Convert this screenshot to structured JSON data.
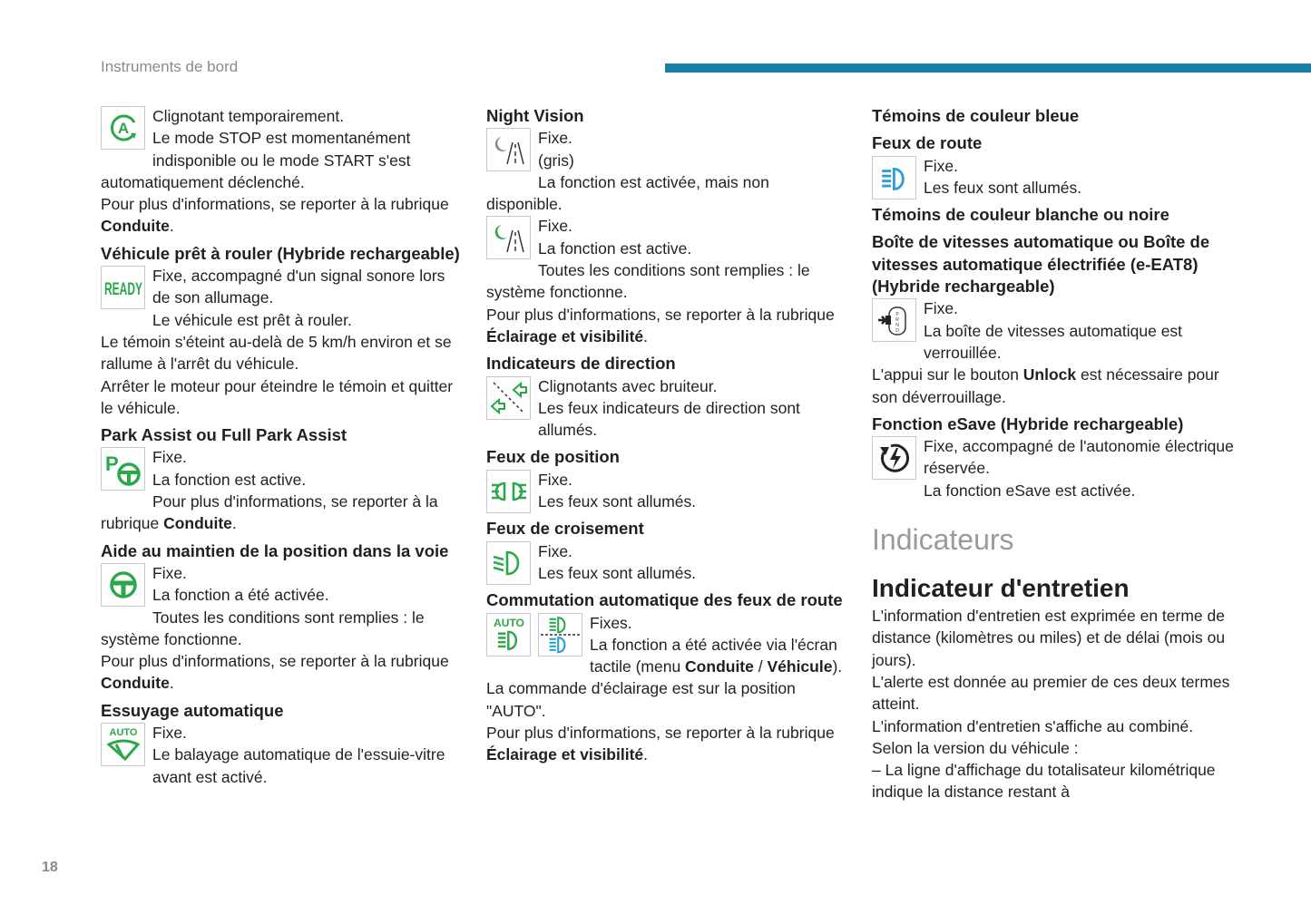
{
  "header": {
    "title": "Instruments de bord",
    "bar_color": "#1a80a8"
  },
  "page_number": "18",
  "colors": {
    "green": "#2aa84a",
    "blue": "#2a9fd6",
    "gray": "#8c8c8c"
  },
  "columns": [
    {
      "blocks": [
        {
          "type": "icon",
          "icons": [
            "auto-stop-start-icon"
          ],
          "paras": [
            [
              "Clignotant temporairement."
            ],
            [
              "Le mode STOP est momentanément indisponible ou le mode START s'est automatiquement déclenché."
            ],
            [
              "Pour plus d'informations, se reporter à la rubrique ",
              {
                "b": "Conduite"
              },
              "."
            ]
          ]
        },
        {
          "type": "h",
          "text": "Véhicule prêt à rouler (Hybride rechargeable)"
        },
        {
          "type": "icon",
          "icons": [
            "ready-icon"
          ],
          "paras": [
            [
              "Fixe, accompagné d'un signal sonore lors de son allumage."
            ],
            [
              "Le véhicule est prêt à rouler."
            ],
            [
              "Le témoin s'éteint au-delà de 5 km/h environ et se rallume à l'arrêt du véhicule."
            ],
            [
              "Arrêter le moteur pour éteindre le témoin et quitter le véhicule."
            ]
          ]
        },
        {
          "type": "h",
          "text": "Park Assist ou Full Park Assist"
        },
        {
          "type": "icon",
          "icons": [
            "park-assist-icon"
          ],
          "paras": [
            [
              "Fixe."
            ],
            [
              "La fonction est active."
            ],
            [
              "Pour plus d'informations, se reporter à la rubrique ",
              {
                "b": "Conduite"
              },
              "."
            ]
          ]
        },
        {
          "type": "h",
          "text": "Aide au maintien de la position dans la voie"
        },
        {
          "type": "icon",
          "icons": [
            "steering-wheel-icon"
          ],
          "paras": [
            [
              "Fixe."
            ],
            [
              "La fonction a été activée."
            ],
            [
              "Toutes les conditions sont remplies : le système fonctionne."
            ],
            [
              "Pour plus d'informations, se reporter à la rubrique ",
              {
                "b": "Conduite"
              },
              "."
            ]
          ]
        },
        {
          "type": "h",
          "text": "Essuyage automatique"
        },
        {
          "type": "icon",
          "icons": [
            "auto-wiper-icon"
          ],
          "paras": [
            [
              "Fixe."
            ],
            [
              "Le balayage automatique de l'essuie-vitre avant est activé."
            ]
          ]
        }
      ]
    },
    {
      "blocks": [
        {
          "type": "h",
          "text": "Night Vision"
        },
        {
          "type": "icon",
          "icons": [
            "night-vision-gray-icon"
          ],
          "paras": [
            [
              "Fixe."
            ],
            [
              "(gris)"
            ],
            [
              "La fonction est activée, mais non disponible."
            ]
          ]
        },
        {
          "type": "icon",
          "icons": [
            "night-vision-green-icon"
          ],
          "paras": [
            [
              "Fixe."
            ],
            [
              "La fonction est active."
            ],
            [
              "Toutes les conditions sont remplies : le système fonctionne."
            ],
            [
              "Pour plus d'informations, se reporter à la rubrique ",
              {
                "b": "Éclairage et visibilité"
              },
              "."
            ]
          ]
        },
        {
          "type": "h",
          "text": "Indicateurs de direction"
        },
        {
          "type": "icon",
          "icons": [
            "turn-signals-icon"
          ],
          "paras": [
            [
              "Clignotants avec bruiteur."
            ],
            [
              "Les feux indicateurs de direction sont allumés."
            ]
          ]
        },
        {
          "type": "h",
          "text": "Feux de position"
        },
        {
          "type": "icon",
          "icons": [
            "position-lights-icon"
          ],
          "paras": [
            [
              "Fixe."
            ],
            [
              "Les feux sont allumés."
            ]
          ]
        },
        {
          "type": "h",
          "text": "Feux de croisement"
        },
        {
          "type": "icon",
          "icons": [
            "dipped-beam-icon"
          ],
          "paras": [
            [
              "Fixe."
            ],
            [
              "Les feux sont allumés."
            ]
          ]
        },
        {
          "type": "h",
          "text": "Commutation automatique des feux de route"
        },
        {
          "type": "icon",
          "icons": [
            "auto-beam-icon",
            "beam-switch-icon"
          ],
          "paras": [
            [
              "Fixes."
            ],
            [
              "La fonction a été activée via l'écran tactile (menu ",
              {
                "b": "Conduite"
              },
              " / ",
              {
                "b": "Véhicule"
              },
              ")."
            ],
            [
              "La commande d'éclairage est sur la position \"AUTO\"."
            ],
            [
              "Pour plus d'informations, se reporter à la rubrique ",
              {
                "b": "Éclairage et visibilité"
              },
              "."
            ]
          ]
        }
      ]
    },
    {
      "blocks": [
        {
          "type": "h",
          "text": "Témoins de couleur bleue"
        },
        {
          "type": "h",
          "text": "Feux de route"
        },
        {
          "type": "icon",
          "icons": [
            "main-beam-icon"
          ],
          "paras": [
            [
              "Fixe."
            ],
            [
              "Les feux sont allumés."
            ]
          ]
        },
        {
          "type": "h",
          "text": "Témoins de couleur blanche ou noire"
        },
        {
          "type": "h",
          "text": "Boîte de vitesses automatique ou Boîte de vitesses automatique électrifiée (e-EAT8) (Hybride rechargeable)"
        },
        {
          "type": "icon",
          "icons": [
            "gearbox-lock-icon"
          ],
          "paras": [
            [
              "Fixe."
            ],
            [
              "La boîte de vitesses automatique est verrouillée."
            ],
            [
              "L'appui sur le bouton ",
              {
                "b": "Unlock"
              },
              " est nécessaire pour son déverrouillage."
            ]
          ]
        },
        {
          "type": "h",
          "text": "Fonction eSave (Hybride rechargeable)"
        },
        {
          "type": "icon",
          "icons": [
            "esave-icon"
          ],
          "paras": [
            [
              "Fixe, accompagné de l'autonomie électrique réservée."
            ],
            [
              "La fonction eSave est activée."
            ]
          ]
        },
        {
          "type": "sec",
          "text": "Indicateurs"
        },
        {
          "type": "h2",
          "text": "Indicateur d'entretien"
        },
        {
          "type": "p",
          "paras": [
            [
              "L'information d'entretien est exprimée en terme de distance (kilomètres ou miles) et de délai (mois ou jours)."
            ],
            [
              "L'alerte est donnée au premier de ces deux termes atteint."
            ],
            [
              "L'information d'entretien s'affiche au combiné."
            ],
            [
              "Selon la version du véhicule :"
            ],
            [
              "–  La ligne d'affichage du totalisateur kilométrique indique la distance restant à"
            ]
          ]
        }
      ]
    }
  ]
}
